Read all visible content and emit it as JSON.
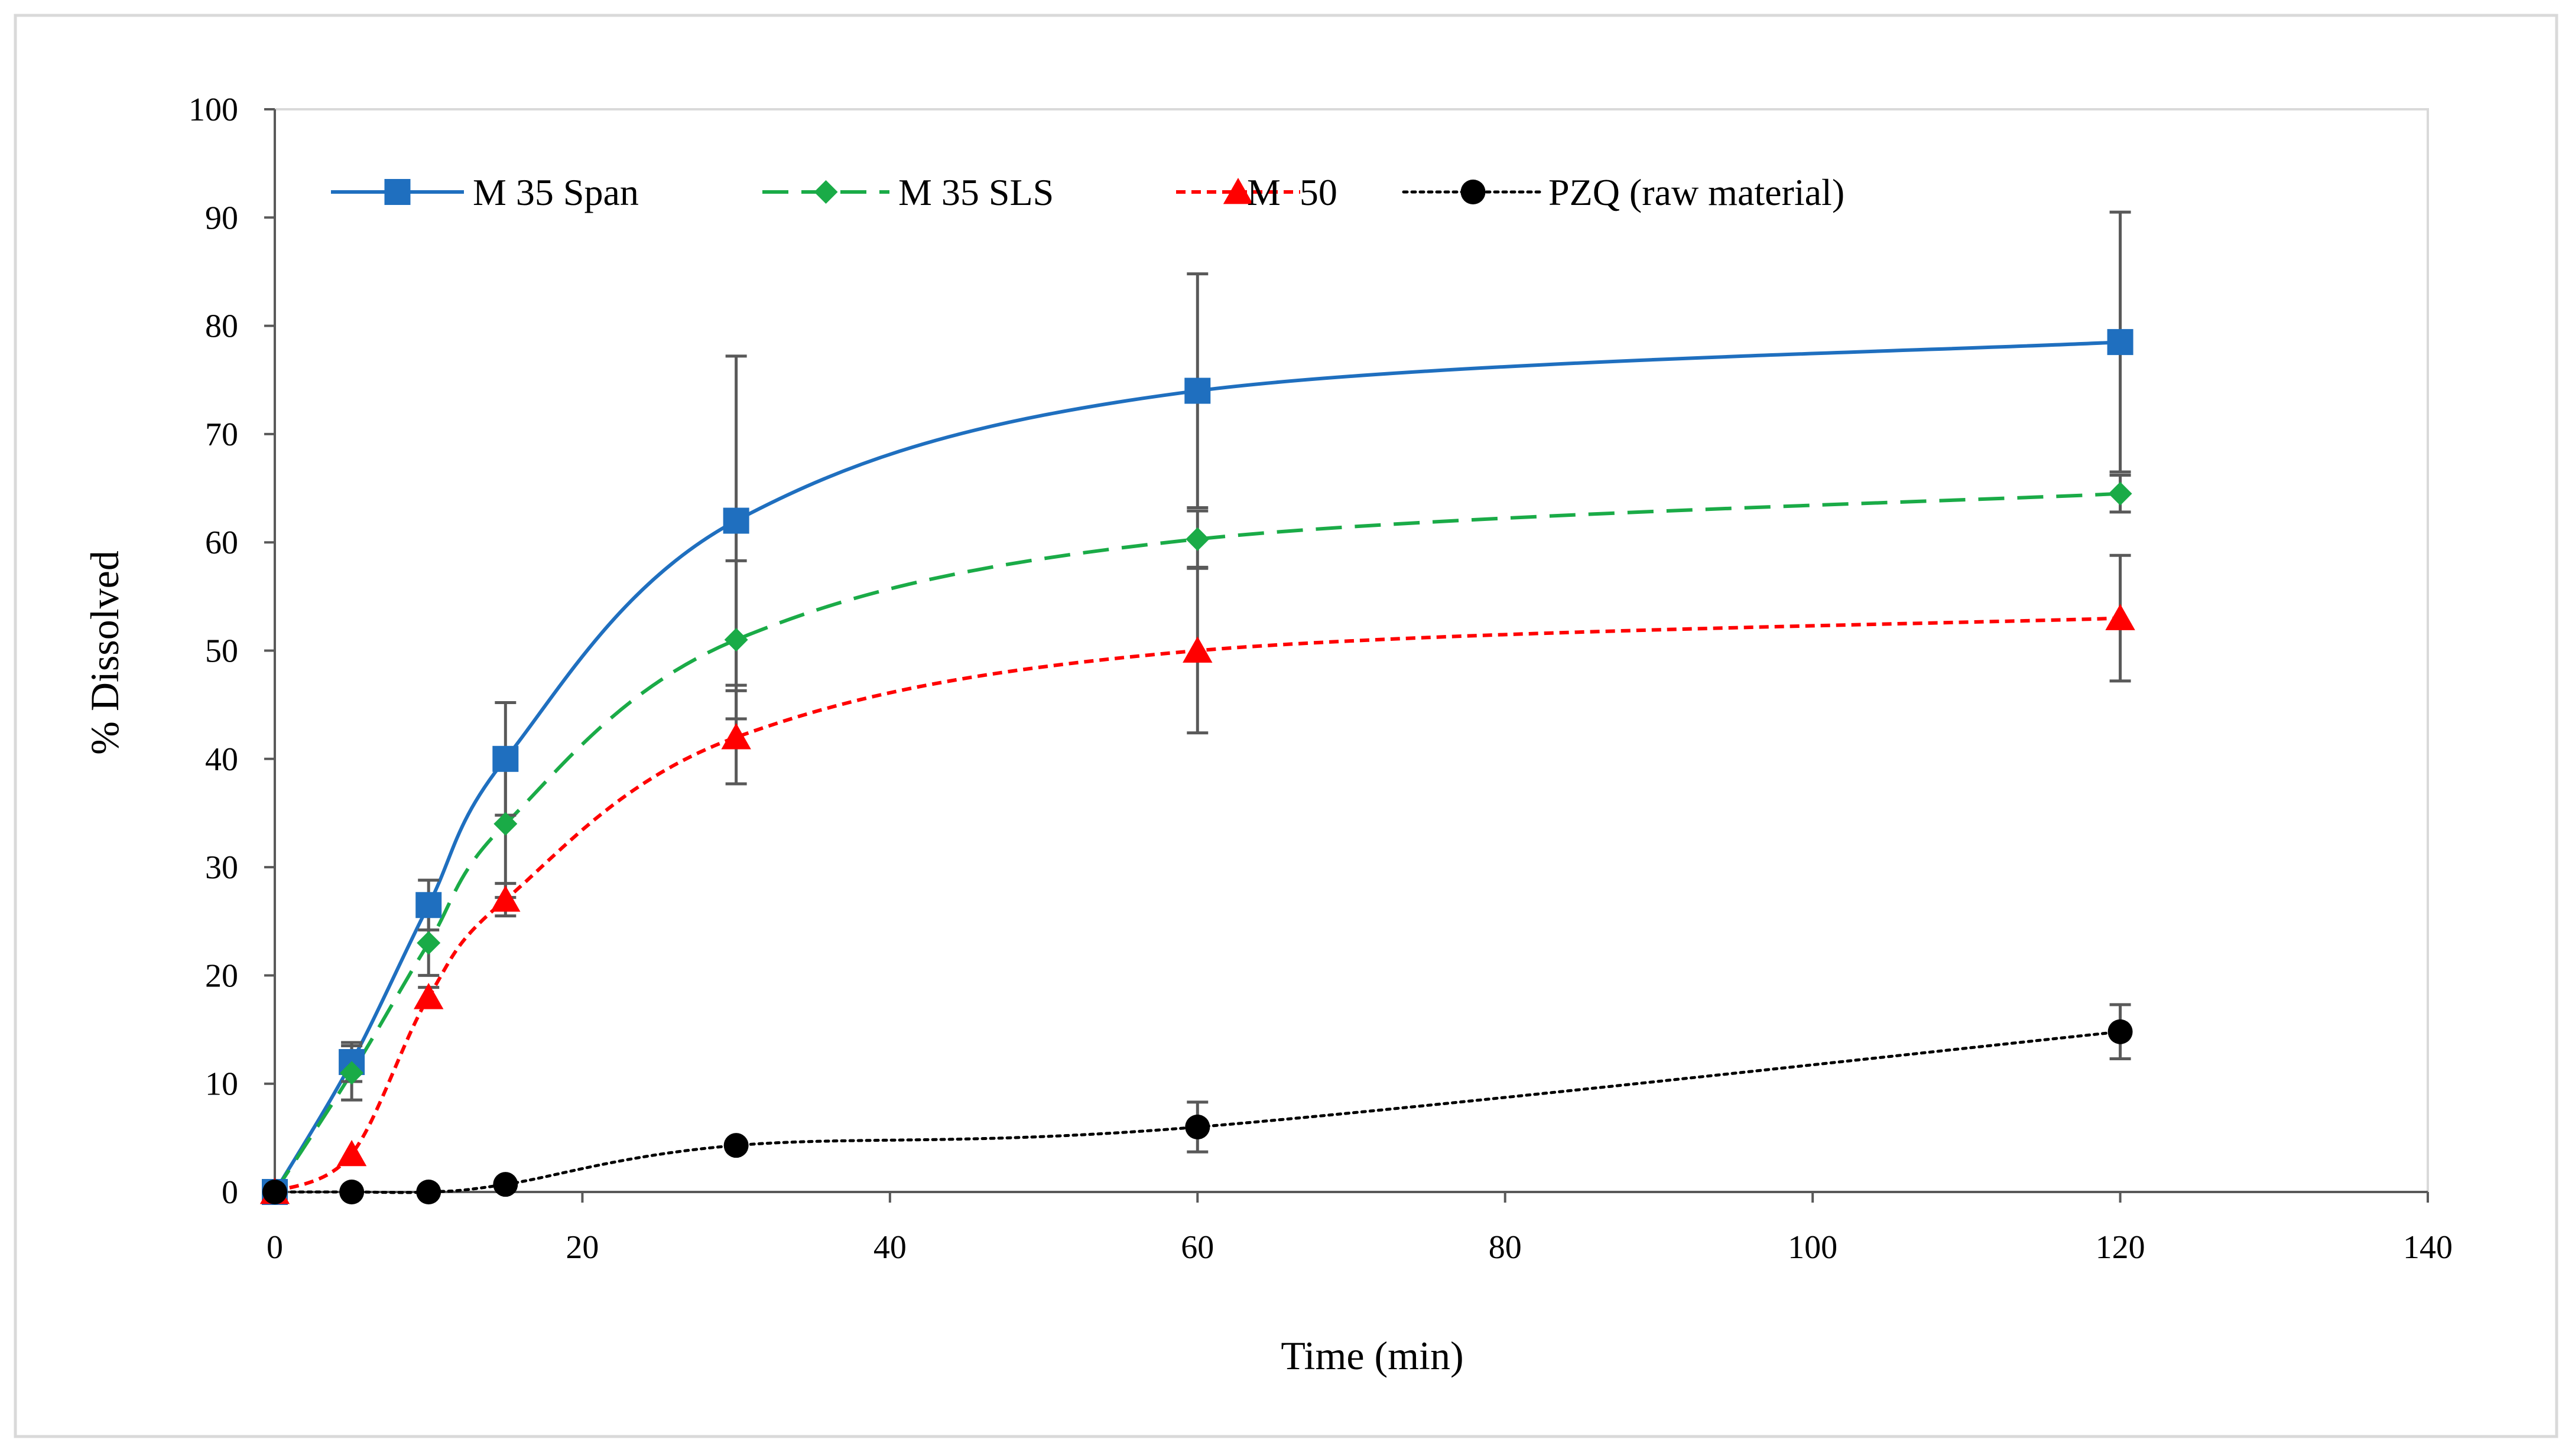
{
  "chart_data": {
    "type": "line",
    "title": "",
    "xlabel": "Time (min)",
    "ylabel": "% Dissolved",
    "xlim": [
      0,
      140
    ],
    "ylim": [
      0,
      100
    ],
    "xticks": [
      0,
      20,
      40,
      60,
      80,
      100,
      120,
      140
    ],
    "yticks": [
      0,
      10,
      20,
      30,
      40,
      50,
      60,
      70,
      80,
      90,
      100
    ],
    "xtick_labels": [
      "0",
      "20",
      "40",
      "60",
      "80",
      "100",
      "120",
      "140"
    ],
    "ytick_labels": [
      "0",
      "10",
      "20",
      "30",
      "40",
      "50",
      "60",
      "70",
      "80",
      "90",
      "100"
    ],
    "grid": false,
    "legend_position": "top-left",
    "x": [
      0,
      5,
      10,
      15,
      30,
      60,
      120
    ],
    "series": [
      {
        "name": "M 35 Span",
        "color": "#1f6fbf",
        "marker": "square",
        "line_style": "solid",
        "values": [
          0,
          12,
          26.5,
          40,
          62,
          74,
          78.5
        ],
        "error": [
          0,
          1.8,
          2.3,
          5.2,
          15.2,
          10.8,
          12
        ]
      },
      {
        "name": "M 35 SLS",
        "color": "#1aab47",
        "marker": "diamond",
        "line_style": "dashed",
        "values": [
          0,
          11,
          23,
          34,
          51,
          60.3,
          64.5
        ],
        "error": [
          0,
          2.5,
          3,
          6.8,
          7.3,
          2.6,
          1.7
        ]
      },
      {
        "name": "M  50",
        "color": "#ff0000",
        "marker": "triangle",
        "line_style": "short-dash",
        "values": [
          0,
          3.5,
          18,
          27,
          42,
          50,
          53
        ],
        "error": [
          0,
          0,
          0.9,
          1.5,
          4.3,
          7.6,
          5.8
        ]
      },
      {
        "name": "PZQ (raw material)",
        "color": "#000000",
        "marker": "circle",
        "line_style": "dotted",
        "values": [
          0,
          0,
          0,
          0.7,
          4.3,
          6,
          14.8
        ],
        "error": [
          0,
          0,
          0,
          0,
          0,
          2.3,
          2.5
        ]
      }
    ]
  }
}
